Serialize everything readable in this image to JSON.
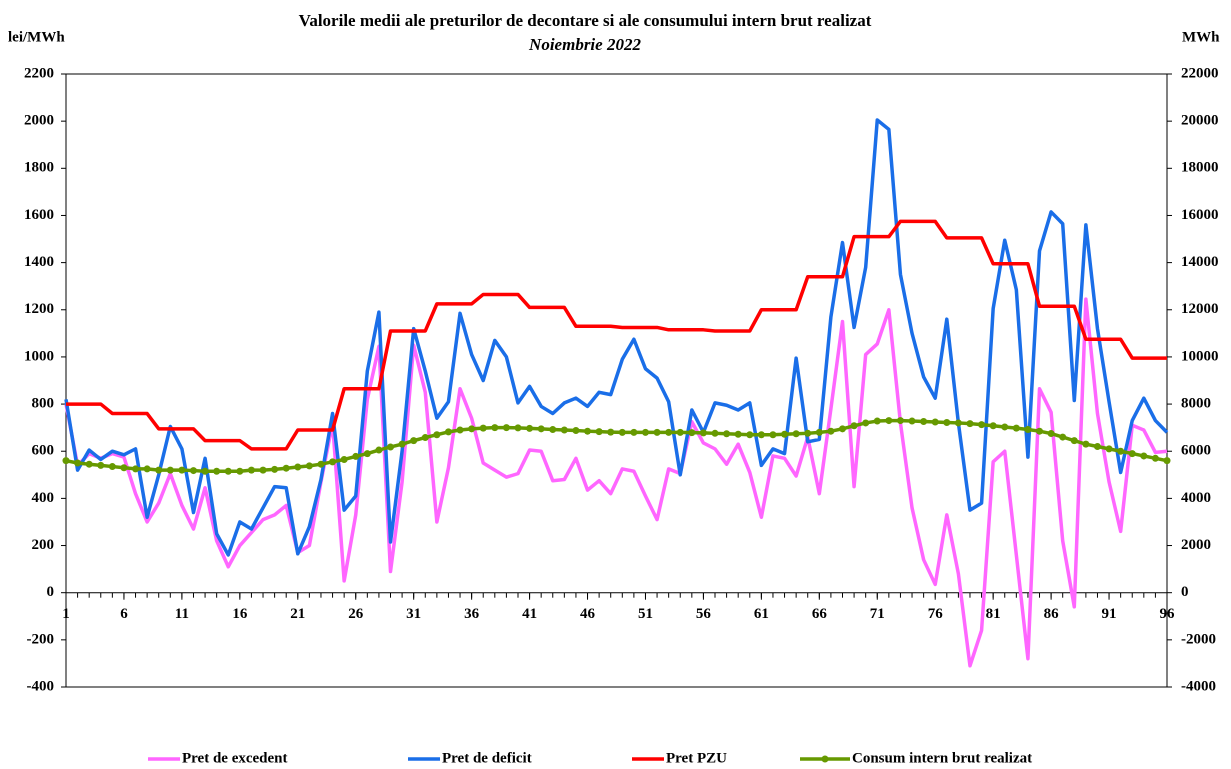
{
  "chart_data": {
    "type": "line",
    "title": "Valorile medii ale preturilor de decontare si ale consumului intern brut realizat",
    "subtitle": "Noiembrie 2022",
    "y_label": "lei/MWh",
    "y2_label": "MWh",
    "x": [
      1,
      2,
      3,
      4,
      5,
      6,
      7,
      8,
      9,
      10,
      11,
      12,
      13,
      14,
      15,
      16,
      17,
      18,
      19,
      20,
      21,
      22,
      23,
      24,
      25,
      26,
      27,
      28,
      29,
      30,
      31,
      32,
      33,
      34,
      35,
      36,
      37,
      38,
      39,
      40,
      41,
      42,
      43,
      44,
      45,
      46,
      47,
      48,
      49,
      50,
      51,
      52,
      53,
      54,
      55,
      56,
      57,
      58,
      59,
      60,
      61,
      62,
      63,
      64,
      65,
      66,
      67,
      68,
      69,
      70,
      71,
      72,
      73,
      74,
      75,
      76,
      77,
      78,
      79,
      80,
      81,
      82,
      83,
      84,
      85,
      86,
      87,
      88,
      89,
      90,
      91,
      92,
      93,
      94,
      95,
      96
    ],
    "xlim": [
      1,
      96
    ],
    "xticks": [
      1,
      6,
      11,
      16,
      21,
      26,
      31,
      36,
      41,
      46,
      51,
      56,
      61,
      66,
      71,
      76,
      81,
      86,
      91,
      96
    ],
    "ylim": [
      -400,
      2200
    ],
    "yticks": [
      -400,
      -200,
      0,
      200,
      400,
      600,
      800,
      1000,
      1200,
      1400,
      1600,
      1800,
      2000,
      2200
    ],
    "y2lim": [
      -4000,
      22000
    ],
    "y2ticks": [
      -4000,
      -2000,
      0,
      2000,
      4000,
      6000,
      8000,
      10000,
      12000,
      14000,
      16000,
      18000,
      20000,
      22000
    ],
    "grid": false,
    "legend": "bottom",
    "series": [
      {
        "name": "Pret de excedent",
        "color": "#ff66ff",
        "values": [
          800,
          540,
          590,
          570,
          590,
          575,
          420,
          300,
          380,
          505,
          370,
          270,
          445,
          220,
          110,
          200,
          255,
          310,
          330,
          370,
          170,
          200,
          470,
          720,
          50,
          330,
          820,
          1045,
          90,
          470,
          1050,
          850,
          300,
          530,
          865,
          740,
          550,
          520,
          490,
          505,
          605,
          600,
          475,
          480,
          570,
          435,
          475,
          420,
          525,
          515,
          410,
          310,
          525,
          505,
          725,
          635,
          610,
          545,
          630,
          510,
          320,
          580,
          570,
          495,
          660,
          420,
          780,
          1150,
          450,
          1010,
          1055,
          1200,
          720,
          360,
          140,
          35,
          330,
          80,
          -310,
          -160,
          555,
          600,
          160,
          -280,
          865,
          765,
          220,
          -60,
          1245,
          760,
          470,
          260,
          710,
          690,
          595,
          600
        ]
      },
      {
        "name": "Pret de deficit",
        "color": "#1a6ee8",
        "values": [
          820,
          520,
          605,
          565,
          600,
          585,
          610,
          320,
          500,
          705,
          610,
          340,
          570,
          250,
          160,
          300,
          270,
          360,
          450,
          445,
          165,
          280,
          480,
          760,
          350,
          410,
          940,
          1190,
          215,
          600,
          1120,
          940,
          740,
          810,
          1185,
          1010,
          900,
          1070,
          1000,
          805,
          875,
          790,
          760,
          805,
          825,
          790,
          850,
          840,
          990,
          1075,
          950,
          910,
          810,
          500,
          775,
          680,
          805,
          795,
          775,
          805,
          540,
          610,
          590,
          995,
          640,
          650,
          1170,
          1485,
          1125,
          1380,
          2005,
          1965,
          1350,
          1100,
          915,
          825,
          1160,
          720,
          350,
          380,
          1205,
          1495,
          1285,
          575,
          1450,
          1615,
          1565,
          815,
          1560,
          1120,
          810,
          510,
          730,
          825,
          730,
          680
        ]
      },
      {
        "name": "Pret PZU",
        "color": "#ff0000",
        "values": [
          800,
          800,
          800,
          800,
          760,
          760,
          760,
          760,
          695,
          695,
          695,
          695,
          645,
          645,
          645,
          645,
          610,
          610,
          610,
          610,
          690,
          690,
          690,
          690,
          865,
          865,
          865,
          865,
          1110,
          1110,
          1110,
          1110,
          1225,
          1225,
          1225,
          1225,
          1265,
          1265,
          1265,
          1265,
          1210,
          1210,
          1210,
          1210,
          1130,
          1130,
          1130,
          1130,
          1125,
          1125,
          1125,
          1125,
          1115,
          1115,
          1115,
          1115,
          1110,
          1110,
          1110,
          1110,
          1200,
          1200,
          1200,
          1200,
          1340,
          1340,
          1340,
          1340,
          1510,
          1510,
          1510,
          1510,
          1575,
          1575,
          1575,
          1575,
          1505,
          1505,
          1505,
          1505,
          1395,
          1395,
          1395,
          1395,
          1215,
          1215,
          1215,
          1215,
          1075,
          1075,
          1075,
          1075,
          995,
          995,
          995,
          995
        ]
      },
      {
        "name": "Consum intern brut realizat",
        "color": "#669900",
        "axis": "y2",
        "values": [
          5600,
          5500,
          5450,
          5400,
          5350,
          5300,
          5250,
          5250,
          5200,
          5200,
          5200,
          5180,
          5150,
          5150,
          5150,
          5150,
          5200,
          5200,
          5230,
          5280,
          5330,
          5380,
          5450,
          5550,
          5650,
          5780,
          5900,
          6050,
          6180,
          6300,
          6450,
          6580,
          6700,
          6820,
          6900,
          6950,
          6980,
          7000,
          7000,
          6990,
          6970,
          6950,
          6920,
          6900,
          6880,
          6850,
          6830,
          6810,
          6800,
          6800,
          6800,
          6800,
          6800,
          6800,
          6790,
          6780,
          6760,
          6740,
          6720,
          6700,
          6700,
          6700,
          6720,
          6740,
          6760,
          6800,
          6850,
          6950,
          7080,
          7200,
          7280,
          7300,
          7300,
          7280,
          7260,
          7240,
          7220,
          7200,
          7170,
          7130,
          7080,
          7030,
          6980,
          6920,
          6850,
          6750,
          6600,
          6450,
          6300,
          6200,
          6100,
          6000,
          5900,
          5800,
          5700,
          5600
        ]
      }
    ]
  }
}
